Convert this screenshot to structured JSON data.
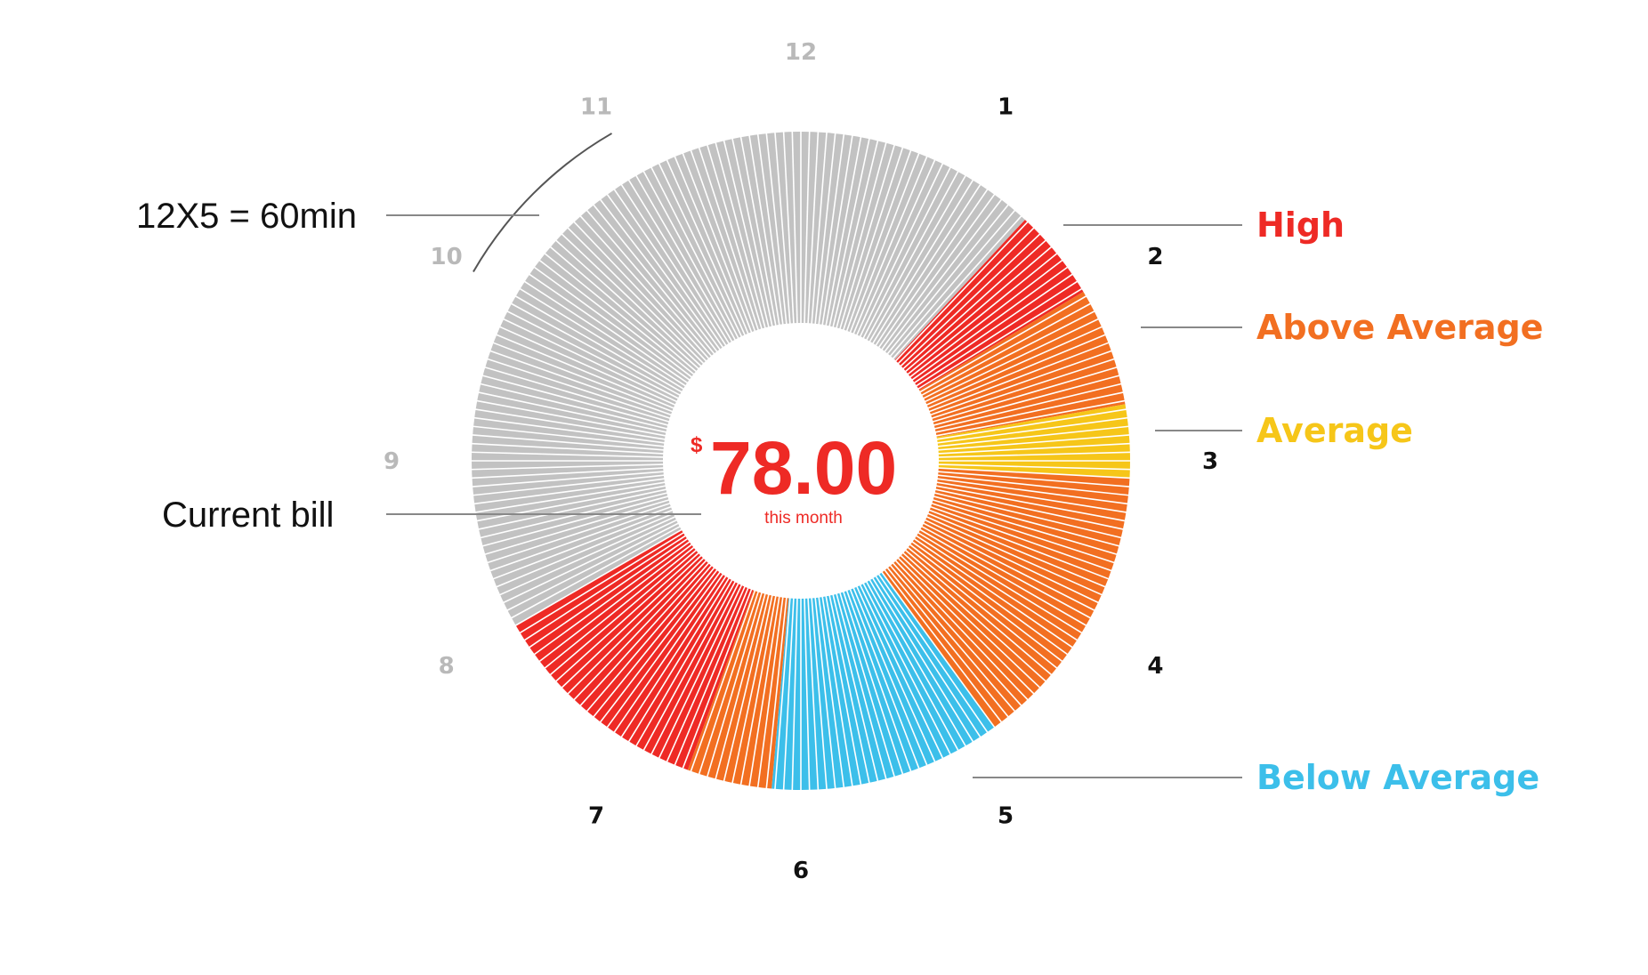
{
  "chart_data": {
    "type": "pie",
    "title": "",
    "center": {
      "currency": "$",
      "amount": "78.00",
      "caption": "this month"
    },
    "clock_labels": [
      "12",
      "1",
      "2",
      "3",
      "4",
      "5",
      "6",
      "7",
      "8",
      "9",
      "10",
      "11"
    ],
    "past_hours": [
      1,
      2,
      3,
      4,
      5,
      6,
      7
    ],
    "annotations": {
      "interval": "12X5 = 60min",
      "current": "Current bill"
    },
    "legend": [
      {
        "key": "high",
        "label": "High",
        "color": "#ee2a25"
      },
      {
        "key": "above",
        "label": "Above Average",
        "color": "#f26f21"
      },
      {
        "key": "average",
        "label": "Average",
        "color": "#f6c619"
      },
      {
        "key": "below",
        "label": "Below Average",
        "color": "#3cbfea"
      }
    ],
    "inactive_color": "#c2c2c2",
    "segments": [
      {
        "level": "high",
        "start_hour": 1.43,
        "end_hour": 1.97
      },
      {
        "level": "above",
        "start_hour": 1.97,
        "end_hour": 2.67
      },
      {
        "level": "average",
        "start_hour": 2.67,
        "end_hour": 3.1
      },
      {
        "level": "above",
        "start_hour": 3.1,
        "end_hour": 4.8
      },
      {
        "level": "below",
        "start_hour": 4.8,
        "end_hour": 6.17
      },
      {
        "level": "above",
        "start_hour": 6.17,
        "end_hour": 6.67
      },
      {
        "level": "high",
        "start_hour": 6.67,
        "end_hour": 8.0
      },
      {
        "level": "inactive",
        "start_hour": 8.0,
        "end_hour": 13.43
      }
    ]
  }
}
